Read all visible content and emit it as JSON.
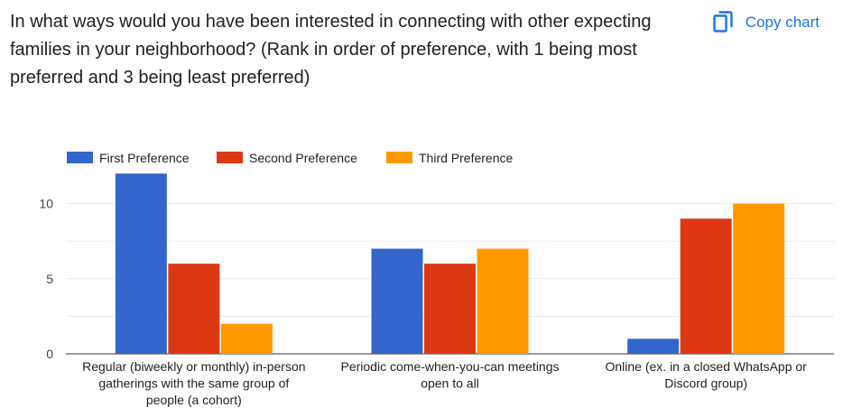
{
  "question": "In what ways would you have been interested in connecting with other expecting families in your neighborhood? (Rank in order of preference, with 1 being most preferred and 3 being least preferred)",
  "copy_button": {
    "label": "Copy chart",
    "icon": "copy-icon"
  },
  "colors": {
    "accent": "#1a73e8"
  },
  "chart_data": {
    "type": "bar",
    "categories": [
      [
        "Regular (biweekly or monthly) in-person",
        "gatherings with the same group of",
        "people (a cohort)"
      ],
      [
        "Periodic come-when-you-can meetings",
        "open to all"
      ],
      [
        "Online (ex. in a closed WhatsApp or",
        "Discord group)"
      ]
    ],
    "series": [
      {
        "name": "First Preference",
        "color": "#3366cc",
        "values": [
          12,
          7,
          1
        ]
      },
      {
        "name": "Second Preference",
        "color": "#dc3912",
        "values": [
          6,
          6,
          9
        ]
      },
      {
        "name": "Third Preference",
        "color": "#ff9900",
        "values": [
          2,
          7,
          10
        ]
      }
    ],
    "ylim": [
      0,
      12.5
    ],
    "yticks": [
      0,
      5,
      10
    ],
    "grid": true,
    "legend": "top-left"
  }
}
